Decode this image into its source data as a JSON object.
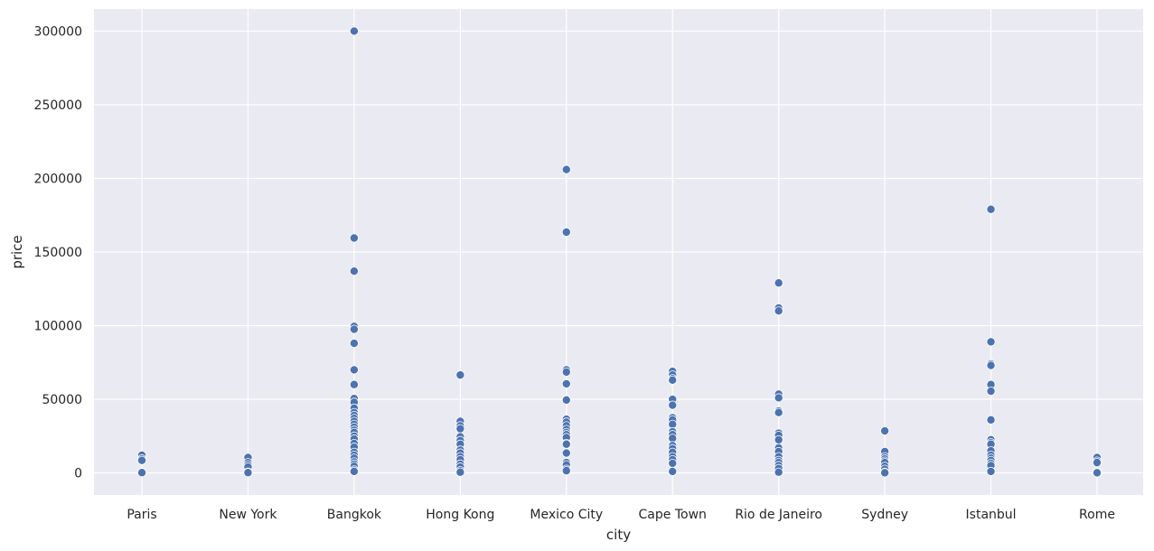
{
  "chart_data": {
    "type": "scatter",
    "title": "",
    "xlabel": "city",
    "ylabel": "price",
    "categories": [
      "Paris",
      "New York",
      "Bangkok",
      "Hong Kong",
      "Mexico City",
      "Cape Town",
      "Rio de Janeiro",
      "Sydney",
      "Istanbul",
      "Rome"
    ],
    "y_ticks": [
      0,
      50000,
      100000,
      150000,
      200000,
      250000,
      300000
    ],
    "y_tick_labels": [
      "0",
      "50000",
      "100000",
      "150000",
      "200000",
      "250000",
      "300000"
    ],
    "ylim": [
      -15000,
      315000
    ],
    "grid": true,
    "marker_color": "#4c72b0",
    "background_color": "#eaeaf2",
    "grid_color": "#ffffff",
    "points": {
      "Paris": [
        12000,
        9500,
        8500,
        500,
        200
      ],
      "New York": [
        10500,
        7000,
        5500,
        4000,
        600,
        200
      ],
      "Bangkok": [
        300000,
        159500,
        137000,
        99500,
        97500,
        88000,
        70000,
        60000,
        50500,
        48000,
        44000,
        41000,
        39000,
        37000,
        35000,
        33000,
        31000,
        29000,
        27500,
        25000,
        23000,
        20000,
        17500,
        14000,
        12000,
        10000,
        7500,
        6000,
        4500,
        2000,
        1000
      ],
      "Hong Kong": [
        66500,
        35000,
        32000,
        30000,
        24500,
        22000,
        19500,
        15500,
        13500,
        11000,
        9000,
        6000,
        4000,
        1500,
        500
      ],
      "Mexico City": [
        206000,
        163500,
        70000,
        68500,
        60500,
        50000,
        49500,
        36500,
        34500,
        32000,
        29500,
        27500,
        26000,
        24000,
        20000,
        19500,
        13500,
        7000,
        5500,
        2500,
        1500
      ],
      "Cape Town": [
        69000,
        66500,
        64000,
        63000,
        50000,
        46000,
        37500,
        36000,
        33000,
        28000,
        26000,
        23500,
        18500,
        16500,
        14000,
        11000,
        9000,
        6500,
        1000
      ],
      "Rio de Janeiro": [
        129000,
        112000,
        110000,
        53500,
        51000,
        42000,
        41000,
        27000,
        25500,
        22500,
        17000,
        14500,
        11000,
        8500,
        7000,
        5000,
        3000,
        500
      ],
      "Sydney": [
        28500,
        14500,
        11000,
        9500,
        8000,
        7000,
        4500,
        2500,
        500,
        100
      ],
      "Istanbul": [
        179000,
        89000,
        74000,
        73000,
        60000,
        55500,
        36000,
        22500,
        20500,
        19500,
        15000,
        12000,
        10000,
        8500,
        6500,
        5000,
        1000
      ],
      "Rome": [
        10500,
        8000,
        7000,
        500,
        100
      ]
    }
  }
}
